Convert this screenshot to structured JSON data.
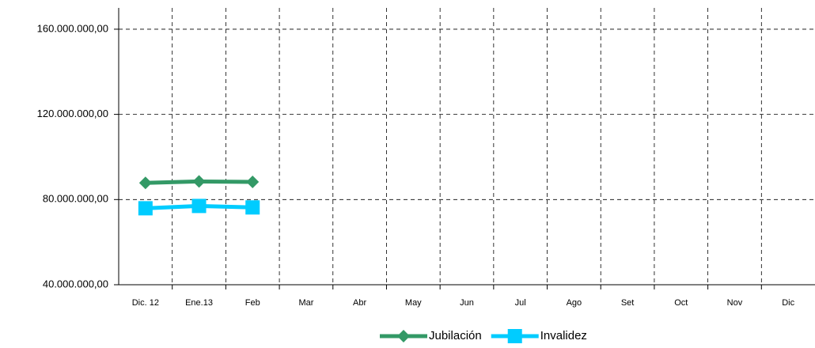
{
  "chart_data": {
    "type": "line",
    "categories": [
      "Dic. 12",
      "Ene.13",
      "Feb",
      "Mar",
      "Abr",
      "May",
      "Jun",
      "Jul",
      "Ago",
      "Set",
      "Oct",
      "Nov",
      "Dic"
    ],
    "series": [
      {
        "name": "Jubilación",
        "color": "#339966",
        "marker": "diamond",
        "values": [
          87800000,
          88500000,
          88300000,
          null,
          null,
          null,
          null,
          null,
          null,
          null,
          null,
          null,
          null
        ]
      },
      {
        "name": "Invalidez",
        "color": "#00ccff",
        "marker": "square",
        "values": [
          75900000,
          77000000,
          76300000,
          null,
          null,
          null,
          null,
          null,
          null,
          null,
          null,
          null,
          null
        ]
      }
    ],
    "ylim": [
      40000000,
      170000000
    ],
    "yticks": [
      {
        "value": 40000000,
        "label": "40.000.000,00"
      },
      {
        "value": 80000000,
        "label": "80.000.000,00"
      },
      {
        "value": 120000000,
        "label": "120.000.000,00"
      },
      {
        "value": 160000000,
        "label": "160.000.000,00"
      }
    ],
    "grid": true,
    "legend": "bottom"
  }
}
